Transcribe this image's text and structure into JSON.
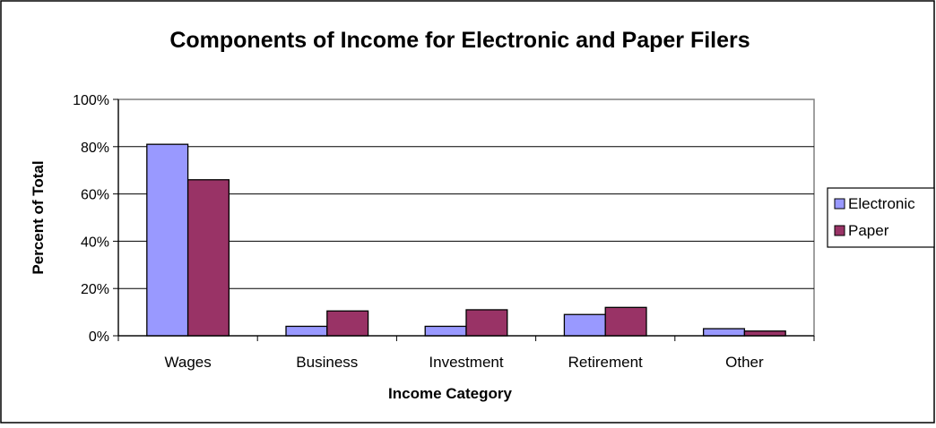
{
  "chart_data": {
    "type": "bar",
    "title": "Components of Income for Electronic and Paper Filers",
    "xlabel": "Income Category",
    "ylabel": "Percent of Total",
    "categories": [
      "Wages",
      "Business",
      "Investment",
      "Retirement",
      "Other"
    ],
    "series": [
      {
        "name": "Electronic",
        "values": [
          81,
          4,
          4,
          9,
          3
        ],
        "color": "#9999ff"
      },
      {
        "name": "Paper",
        "values": [
          66,
          10.5,
          11,
          12,
          2
        ],
        "color": "#993366"
      }
    ],
    "ylim": [
      0,
      100
    ],
    "yticks": [
      0,
      20,
      40,
      60,
      80,
      100
    ],
    "ytick_labels": [
      "0%",
      "20%",
      "40%",
      "60%",
      "80%",
      "100%"
    ],
    "grid": true,
    "plot_background": "#ffffff",
    "legend_position": "right"
  }
}
